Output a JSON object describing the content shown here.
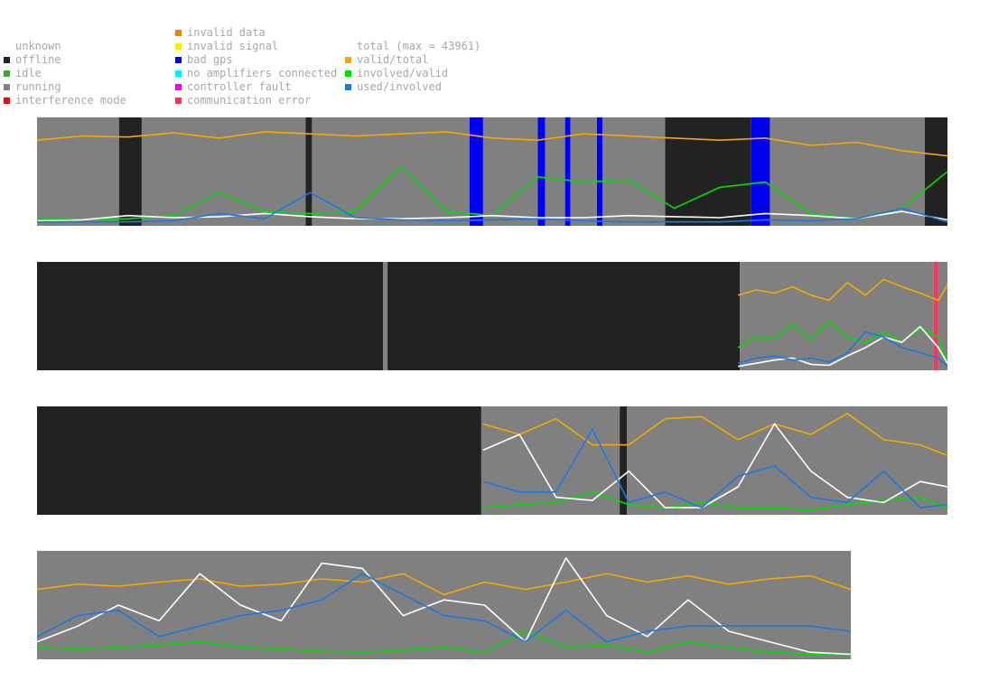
{
  "legend": {
    "status": [
      {
        "label": "unknown",
        "color": "#ffffff"
      },
      {
        "label": "offline",
        "color": "#222222"
      },
      {
        "label": "idle",
        "color": "#3fa33f"
      },
      {
        "label": "running",
        "color": "#808080"
      },
      {
        "label": "interference mode",
        "color": "#e01010"
      }
    ],
    "faults": [
      {
        "label": "invalid data",
        "color": "#f08000"
      },
      {
        "label": "invalid signal",
        "color": "#f0f000"
      },
      {
        "label": "bad gps",
        "color": "#0000f0"
      },
      {
        "label": "no amplifiers connected",
        "color": "#00f0f0"
      },
      {
        "label": "controller fault",
        "color": "#f000f0"
      },
      {
        "label": "communication error",
        "color": "#e04060"
      }
    ],
    "series": [
      {
        "label": "total (max = 43961)",
        "color": ""
      },
      {
        "label": "valid/total",
        "color": "#f5a800"
      },
      {
        "label": "involved/valid",
        "color": "#00e000"
      },
      {
        "label": "used/involved",
        "color": "#1a78e0"
      }
    ]
  },
  "chart_data": [
    {
      "type": "line",
      "panel": 1,
      "x": [
        0,
        0.05,
        0.1,
        0.15,
        0.2,
        0.25,
        0.3,
        0.35,
        0.4,
        0.45,
        0.5,
        0.55,
        0.6,
        0.65,
        0.7,
        0.75,
        0.8,
        0.85,
        0.9,
        0.95,
        1
      ],
      "ylim": [
        0,
        1
      ],
      "status_segments": [
        {
          "from": 0,
          "to": 0.09,
          "status": "running"
        },
        {
          "from": 0.09,
          "to": 0.115,
          "status": "offline"
        },
        {
          "from": 0.115,
          "to": 0.295,
          "status": "running"
        },
        {
          "from": 0.295,
          "to": 0.302,
          "status": "offline"
        },
        {
          "from": 0.302,
          "to": 0.475,
          "status": "running"
        },
        {
          "from": 0.475,
          "to": 0.49,
          "status": "bad gps"
        },
        {
          "from": 0.49,
          "to": 0.55,
          "status": "running"
        },
        {
          "from": 0.55,
          "to": 0.558,
          "status": "bad gps"
        },
        {
          "from": 0.558,
          "to": 0.58,
          "status": "running"
        },
        {
          "from": 0.58,
          "to": 0.586,
          "status": "bad gps"
        },
        {
          "from": 0.586,
          "to": 0.615,
          "status": "running"
        },
        {
          "from": 0.615,
          "to": 0.621,
          "status": "bad gps"
        },
        {
          "from": 0.621,
          "to": 0.69,
          "status": "running"
        },
        {
          "from": 0.69,
          "to": 0.784,
          "status": "offline"
        },
        {
          "from": 0.784,
          "to": 0.805,
          "status": "bad gps"
        },
        {
          "from": 0.805,
          "to": 0.975,
          "status": "running"
        },
        {
          "from": 0.975,
          "to": 1,
          "status": "offline"
        }
      ],
      "series": [
        {
          "name": "valid/total",
          "values": [
            0.8,
            0.84,
            0.83,
            0.87,
            0.82,
            0.88,
            0.86,
            0.84,
            0.86,
            0.88,
            0.82,
            0.8,
            0.86,
            0.84,
            0.82,
            0.8,
            0.82,
            0.75,
            0.78,
            0.7,
            0.65
          ]
        },
        {
          "name": "involved/valid",
          "values": [
            0.05,
            0.04,
            0.05,
            0.08,
            0.3,
            0.12,
            0.1,
            0.12,
            0.55,
            0.12,
            0.08,
            0.45,
            0.4,
            0.42,
            0.15,
            0.35,
            0.4,
            0.1,
            0.05,
            0.15,
            0.5
          ]
        },
        {
          "name": "total",
          "values": [
            0.03,
            0.04,
            0.08,
            0.06,
            0.07,
            0.1,
            0.07,
            0.05,
            0.05,
            0.06,
            0.08,
            0.06,
            0.06,
            0.08,
            0.07,
            0.06,
            0.1,
            0.08,
            0.05,
            0.12,
            0.04
          ]
        },
        {
          "name": "used/involved",
          "values": [
            0.02,
            0.02,
            0.02,
            0.03,
            0.1,
            0.05,
            0.3,
            0.06,
            0.04,
            0.03,
            0.04,
            0.05,
            0.03,
            0.02,
            0.02,
            0.02,
            0.04,
            0.03,
            0.05,
            0.15,
            0.02
          ]
        }
      ]
    },
    {
      "type": "line",
      "panel": 2,
      "x": [
        0.77,
        0.79,
        0.81,
        0.83,
        0.85,
        0.87,
        0.89,
        0.91,
        0.93,
        0.95,
        0.97,
        0.99,
        1
      ],
      "ylim": [
        0,
        1
      ],
      "status_segments": [
        {
          "from": 0,
          "to": 0.38,
          "status": "offline"
        },
        {
          "from": 0.38,
          "to": 0.385,
          "status": "running"
        },
        {
          "from": 0.385,
          "to": 0.772,
          "status": "offline"
        },
        {
          "from": 0.772,
          "to": 0.985,
          "status": "running"
        },
        {
          "from": 0.985,
          "to": 0.99,
          "status": "communication error"
        },
        {
          "from": 0.99,
          "to": 1,
          "status": "running"
        }
      ],
      "series": [
        {
          "name": "valid/total",
          "values": [
            0.7,
            0.75,
            0.72,
            0.78,
            0.7,
            0.65,
            0.82,
            0.7,
            0.85,
            0.78,
            0.72,
            0.65,
            0.8
          ]
        },
        {
          "name": "involved/valid",
          "values": [
            0.2,
            0.3,
            0.28,
            0.42,
            0.28,
            0.45,
            0.3,
            0.25,
            0.35,
            0.25,
            0.38,
            0.3,
            0.05
          ]
        },
        {
          "name": "total",
          "values": [
            0.02,
            0.05,
            0.08,
            0.1,
            0.04,
            0.03,
            0.12,
            0.2,
            0.3,
            0.25,
            0.4,
            0.2,
            0.05
          ]
        },
        {
          "name": "used/involved",
          "values": [
            0.05,
            0.1,
            0.12,
            0.08,
            0.1,
            0.06,
            0.15,
            0.35,
            0.3,
            0.2,
            0.15,
            0.1,
            0.02
          ]
        }
      ]
    },
    {
      "type": "line",
      "panel": 3,
      "x": [
        0.49,
        0.53,
        0.57,
        0.61,
        0.65,
        0.69,
        0.73,
        0.77,
        0.81,
        0.85,
        0.89,
        0.93,
        0.97,
        1
      ],
      "ylim": [
        0,
        1
      ],
      "status_segments": [
        {
          "from": 0,
          "to": 0.488,
          "status": "offline"
        },
        {
          "from": 0.488,
          "to": 0.64,
          "status": "running"
        },
        {
          "from": 0.64,
          "to": 0.648,
          "status": "offline"
        },
        {
          "from": 0.648,
          "to": 1,
          "status": "running"
        }
      ],
      "series": [
        {
          "name": "valid/total",
          "values": [
            0.85,
            0.75,
            0.9,
            0.65,
            0.65,
            0.9,
            0.92,
            0.7,
            0.85,
            0.75,
            0.95,
            0.7,
            0.65,
            0.55
          ]
        },
        {
          "name": "involved/valid",
          "values": [
            0.05,
            0.08,
            0.1,
            0.2,
            0.08,
            0.05,
            0.1,
            0.05,
            0.05,
            0.03,
            0.08,
            0.12,
            0.15,
            0.05
          ]
        },
        {
          "name": "total",
          "values": [
            0.6,
            0.75,
            0.15,
            0.12,
            0.4,
            0.05,
            0.05,
            0.25,
            0.85,
            0.4,
            0.15,
            0.1,
            0.3,
            0.25
          ]
        },
        {
          "name": "used/involved",
          "values": [
            0.3,
            0.2,
            0.2,
            0.8,
            0.1,
            0.2,
            0.05,
            0.35,
            0.45,
            0.15,
            0.1,
            0.4,
            0.05,
            0.08
          ]
        }
      ]
    },
    {
      "type": "line",
      "panel": 4,
      "x": [
        0,
        0.05,
        0.1,
        0.15,
        0.2,
        0.25,
        0.3,
        0.35,
        0.4,
        0.45,
        0.5,
        0.55,
        0.6,
        0.65,
        0.7,
        0.75,
        0.8,
        0.85,
        0.9,
        0.95,
        1
      ],
      "ylim": [
        0,
        1
      ],
      "status_segments": [
        {
          "from": 0,
          "to": 1,
          "status": "running"
        }
      ],
      "series": [
        {
          "name": "valid/total",
          "values": [
            0.65,
            0.7,
            0.68,
            0.72,
            0.75,
            0.68,
            0.7,
            0.75,
            0.72,
            0.8,
            0.6,
            0.72,
            0.65,
            0.72,
            0.8,
            0.72,
            0.78,
            0.7,
            0.75,
            0.78,
            0.65
          ]
        },
        {
          "name": "involved/valid",
          "values": [
            0.1,
            0.08,
            0.1,
            0.12,
            0.15,
            0.1,
            0.08,
            0.06,
            0.05,
            0.07,
            0.1,
            0.05,
            0.25,
            0.1,
            0.12,
            0.05,
            0.15,
            0.1,
            0.05,
            0.03,
            0.02
          ]
        },
        {
          "name": "total",
          "values": [
            0.15,
            0.3,
            0.5,
            0.35,
            0.8,
            0.5,
            0.35,
            0.9,
            0.85,
            0.4,
            0.55,
            0.5,
            0.15,
            0.95,
            0.4,
            0.2,
            0.55,
            0.25,
            0.15,
            0.05,
            0.03
          ]
        },
        {
          "name": "used/involved",
          "values": [
            0.2,
            0.4,
            0.45,
            0.2,
            0.3,
            0.4,
            0.45,
            0.55,
            0.8,
            0.6,
            0.4,
            0.35,
            0.15,
            0.45,
            0.15,
            0.25,
            0.3,
            0.3,
            0.3,
            0.3,
            0.25
          ]
        }
      ]
    }
  ]
}
